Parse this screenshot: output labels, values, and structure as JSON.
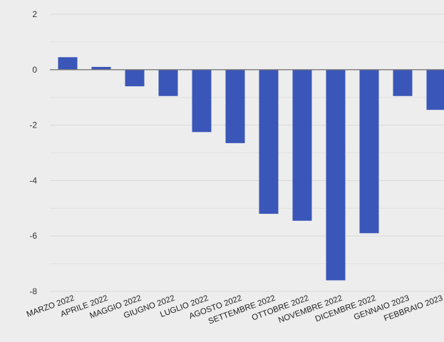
{
  "chart_data": {
    "type": "bar",
    "title": "",
    "xlabel": "",
    "ylabel": "",
    "categories": [
      "MARZO 2022",
      "APRILE 2022",
      "MAGGIO 2022",
      "GIUGNO 2022",
      "LUGLIO 2022",
      "AGOSTO 2022",
      "SETTEMBRE 2022",
      "OTTOBRE 2022",
      "NOVEMBRE 2022",
      "DICEMBRE 2022",
      "GENNAIO 2023",
      "FEBBRAIO 2023"
    ],
    "values": [
      0.45,
      0.1,
      -0.6,
      -0.95,
      -2.25,
      -2.65,
      -5.2,
      -5.45,
      -7.6,
      -5.9,
      -0.95,
      -1.45
    ],
    "ylim": [
      -8,
      2
    ],
    "y_ticks": [
      2,
      0,
      -2,
      -4,
      -6,
      -8
    ],
    "grid": true,
    "bar_color": "#3a56b8",
    "grid_color": "#d9d9d9",
    "zero_line_color": "#7a7a7a",
    "background_color": "#ededed"
  }
}
